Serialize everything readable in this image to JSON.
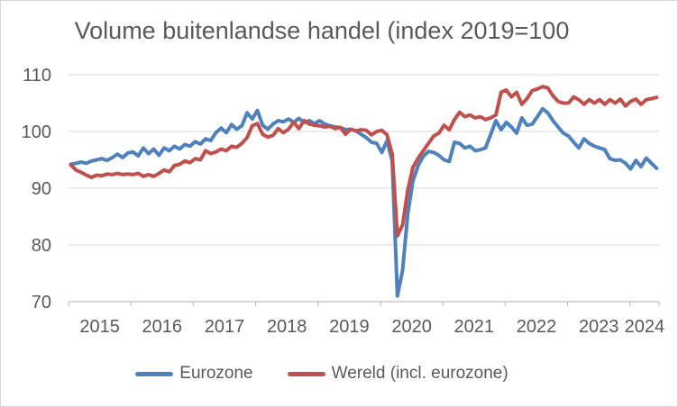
{
  "chart": {
    "title": "Volume buitenlandse handel (index 2019=100"
  },
  "chart_data": {
    "type": "line",
    "title": "Volume buitenlandse handel (index 2019=100",
    "xlabel": "",
    "ylabel": "",
    "x_unit": "month",
    "x_start": "2015-01",
    "x_end": "2024-06",
    "x_tick_labels": [
      "2015",
      "2016",
      "2017",
      "2018",
      "2019",
      "2020",
      "2021",
      "2022",
      "2023",
      "2024"
    ],
    "y_ticks": [
      110,
      100,
      90,
      80,
      70
    ],
    "ylim": [
      70,
      110
    ],
    "grid": "horizontal",
    "legend_position": "bottom",
    "series": [
      {
        "name": "Eurozone",
        "color": "#4F81BD",
        "values": [
          94.2,
          94.4,
          94.6,
          94.4,
          94.8,
          95.0,
          95.2,
          94.9,
          95.4,
          96.0,
          95.4,
          96.2,
          96.4,
          95.7,
          97.1,
          96.1,
          96.9,
          95.8,
          97.1,
          96.6,
          97.4,
          96.9,
          97.7,
          97.4,
          98.2,
          97.8,
          98.7,
          98.4,
          99.8,
          100.6,
          99.8,
          101.2,
          100.4,
          101.0,
          103.3,
          102.2,
          103.7,
          101.1,
          100.4,
          101.3,
          101.9,
          101.7,
          102.2,
          101.6,
          102.3,
          101.6,
          101.9,
          101.4,
          101.9,
          101.3,
          101.0,
          100.8,
          100.7,
          100.3,
          100.4,
          100.1,
          99.5,
          98.9,
          98.1,
          97.9,
          96.3,
          98.4,
          94.8,
          71.0,
          75.5,
          85.5,
          91.3,
          94.0,
          95.6,
          96.5,
          96.3,
          95.8,
          95.0,
          94.7,
          98.1,
          97.9,
          97.1,
          97.4,
          96.6,
          96.8,
          97.1,
          99.5,
          101.9,
          100.3,
          101.6,
          100.8,
          99.7,
          102.4,
          101.1,
          101.3,
          102.6,
          104.0,
          103.3,
          101.9,
          100.8,
          99.7,
          99.2,
          98.1,
          97.1,
          98.7,
          97.9,
          97.4,
          97.1,
          96.8,
          95.2,
          94.9,
          95.0,
          94.4,
          93.4,
          94.9,
          93.8,
          95.3,
          94.4,
          93.5
        ]
      },
      {
        "name": "Wereld (incl. eurozone)",
        "color": "#C0504D",
        "values": [
          94.1,
          93.2,
          92.8,
          92.3,
          91.9,
          92.3,
          92.2,
          92.5,
          92.4,
          92.6,
          92.4,
          92.5,
          92.4,
          92.6,
          92.1,
          92.4,
          92.1,
          92.6,
          93.2,
          92.9,
          94.0,
          94.2,
          94.8,
          94.5,
          95.2,
          95.0,
          96.6,
          96.1,
          96.4,
          96.9,
          96.6,
          97.4,
          97.2,
          97.9,
          98.9,
          101.0,
          101.4,
          99.5,
          99.0,
          99.3,
          100.5,
          99.8,
          100.4,
          101.6,
          100.5,
          101.9,
          101.3,
          101.1,
          101.0,
          100.8,
          100.9,
          100.5,
          100.7,
          99.5,
          100.4,
          100.1,
          100.3,
          100.2,
          99.4,
          100.0,
          100.2,
          99.4,
          96.0,
          81.6,
          83.5,
          89.7,
          93.7,
          95.3,
          96.6,
          97.9,
          99.2,
          99.7,
          101.1,
          100.3,
          102.1,
          103.4,
          102.6,
          102.9,
          102.4,
          102.6,
          102.1,
          102.4,
          102.9,
          106.9,
          107.3,
          106.1,
          106.9,
          104.8,
          105.8,
          107.2,
          107.5,
          107.9,
          107.7,
          106.3,
          105.3,
          105.0,
          105.0,
          106.1,
          105.6,
          104.8,
          105.6,
          105.0,
          105.6,
          104.8,
          105.6,
          105.0,
          105.7,
          104.5,
          105.3,
          105.7,
          104.8,
          105.6,
          105.8,
          106.0
        ]
      }
    ],
    "style": {
      "gridline_color": "#d9d9d9",
      "axis_color": "#bfbfbf",
      "text_color": "#595959",
      "background": "#ffffff",
      "line_width": 4
    }
  }
}
